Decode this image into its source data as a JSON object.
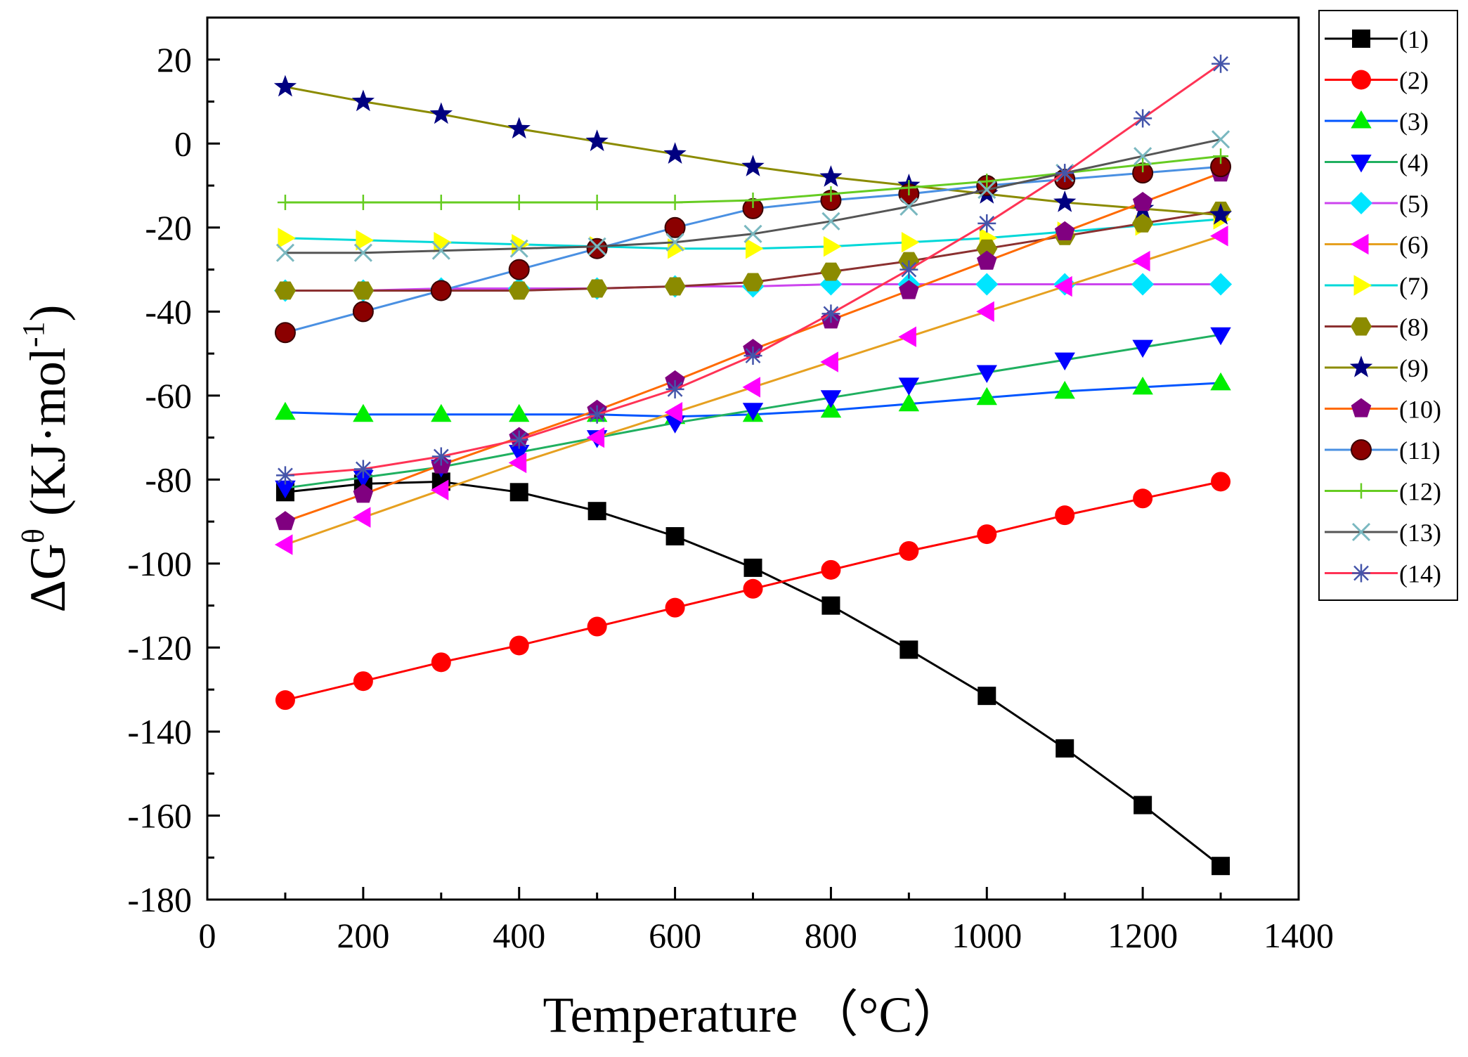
{
  "chart_data": {
    "type": "line",
    "title": "",
    "xlabel": "Temperature （°C）",
    "ylabel": {
      "main": "ΔG",
      "sup1": "θ",
      "unit": " (KJ·mol",
      "sup2": "-1",
      "close": ")"
    },
    "xlim": [
      0,
      1400
    ],
    "ylim": [
      -180,
      30
    ],
    "xticks": [
      0,
      200,
      400,
      600,
      800,
      1000,
      1200,
      1400
    ],
    "yticks": [
      -180,
      -160,
      -140,
      -120,
      -100,
      -80,
      -60,
      -40,
      -20,
      0,
      20
    ],
    "grid": false,
    "legend_position": "outside-right",
    "x": [
      100,
      200,
      300,
      400,
      500,
      600,
      700,
      800,
      900,
      1000,
      1100,
      1200,
      1300
    ],
    "series": [
      {
        "name": "(1)",
        "color": "#000000",
        "marker": "square",
        "values": [
          -83,
          -81,
          -80.5,
          -83,
          -87.5,
          -93.5,
          -101,
          -110,
          -120.5,
          -131.5,
          -144,
          -157.5,
          -172
        ]
      },
      {
        "name": "(2)",
        "color": "#ff0000",
        "marker": "circle",
        "values": [
          -132.5,
          -128,
          -123.5,
          -119.5,
          -115,
          -110.5,
          -106,
          -101.5,
          -97,
          -93,
          -88.5,
          -84.5,
          -80.5
        ]
      },
      {
        "name": "(3)",
        "color": "#0055ff",
        "marker": "triangle-up",
        "markerColor": "#00ee00",
        "values": [
          -64,
          -64.5,
          -64.5,
          -64.5,
          -64.5,
          -65,
          -64.5,
          -63.5,
          -62,
          -60.5,
          -59,
          -58,
          -57
        ]
      },
      {
        "name": "(4)",
        "color": "#20b060",
        "marker": "triangle-down",
        "markerColor": "#0000ff",
        "values": [
          -82,
          -79.5,
          -77,
          -73.5,
          -70,
          -66.5,
          -63.5,
          -60.5,
          -57.5,
          -54.5,
          -51.5,
          -48.5,
          -45.5
        ]
      },
      {
        "name": "(5)",
        "color": "#cc44ee",
        "marker": "diamond",
        "markerColor": "#00e5ff",
        "values": [
          -35,
          -35,
          -34.5,
          -34.5,
          -34.5,
          -34,
          -34,
          -33.5,
          -33.5,
          -33.5,
          -33.5,
          -33.5,
          -33.5
        ]
      },
      {
        "name": "(6)",
        "color": "#e6a020",
        "marker": "triangle-left",
        "markerColor": "#ff00ff",
        "values": [
          -95.5,
          -89,
          -82.5,
          -76,
          -70,
          -64,
          -58,
          -52,
          -46,
          -40,
          -34,
          -28,
          -22
        ]
      },
      {
        "name": "(7)",
        "color": "#00d8d8",
        "marker": "triangle-right",
        "markerColor": "#ffff00",
        "values": [
          -22.5,
          -23,
          -23.5,
          -24,
          -24.5,
          -25,
          -25,
          -24.5,
          -23.5,
          -22.5,
          -21,
          -19.5,
          -18
        ]
      },
      {
        "name": "(8)",
        "color": "#8b3030",
        "marker": "hexagon",
        "markerColor": "#8b8b00",
        "values": [
          -35,
          -35,
          -35,
          -35,
          -34.5,
          -34,
          -33,
          -30.5,
          -28,
          -25,
          -22,
          -19,
          -16
        ]
      },
      {
        "name": "(9)",
        "color": "#8b8b00",
        "marker": "star",
        "markerColor": "#000080",
        "values": [
          13.5,
          10,
          7,
          3.5,
          0.5,
          -2.5,
          -5.5,
          -8,
          -10,
          -12,
          -14,
          -15.5,
          -17
        ]
      },
      {
        "name": "(10)",
        "color": "#ff6a00",
        "marker": "pentagon",
        "markerColor": "#800080",
        "values": [
          -90,
          -83.5,
          -76.5,
          -70,
          -63.5,
          -56.5,
          -49,
          -42,
          -35,
          -28,
          -21,
          -14,
          -7
        ]
      },
      {
        "name": "(11)",
        "color": "#4a90e2",
        "marker": "circle-dark",
        "markerColor": "#8b0000",
        "values": [
          -45,
          -40,
          -35,
          -30,
          -25,
          -20,
          -15.5,
          -13.5,
          -12,
          -10,
          -8.5,
          -7,
          -5.5
        ]
      },
      {
        "name": "(12)",
        "color": "#66cc22",
        "marker": "plus",
        "markerColor": "#66cc22",
        "values": [
          -14,
          -14,
          -14,
          -14,
          -14,
          -14,
          -13.5,
          -12,
          -10.5,
          -9,
          -7,
          -5,
          -3
        ]
      },
      {
        "name": "(13)",
        "color": "#555555",
        "marker": "cross",
        "markerColor": "#7ab8c0",
        "values": [
          -26,
          -26,
          -25.5,
          -25,
          -24.5,
          -23.5,
          -21.5,
          -18.5,
          -15,
          -11,
          -7,
          -3,
          1
        ]
      },
      {
        "name": "(14)",
        "color": "#ff3355",
        "marker": "asterisk",
        "markerColor": "#4455aa",
        "values": [
          -79,
          -77.5,
          -74.5,
          -70.5,
          -64.5,
          -58.5,
          -50.5,
          -40.5,
          -30,
          -19,
          -7,
          6,
          19
        ]
      }
    ]
  }
}
